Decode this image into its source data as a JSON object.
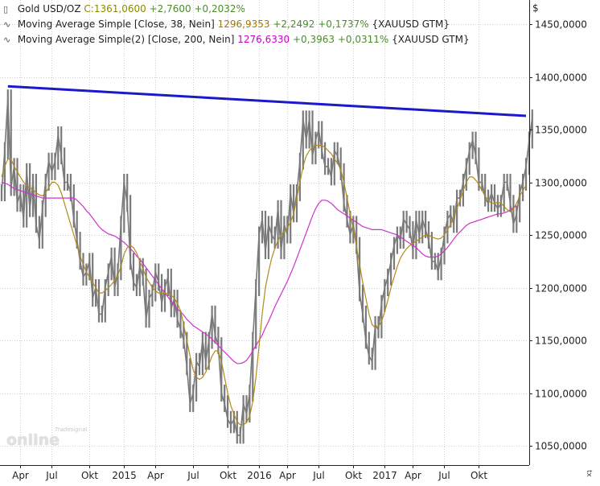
{
  "legend": {
    "main": {
      "name": "Gold USD/OZ",
      "price": "C:1361,0600",
      "change": "+2,7600",
      "pct": "+0,2032%"
    },
    "ma38": {
      "name": "Moving Average Simple [Close, 38, Nein]",
      "price": "1296,9353",
      "change": "+2,2492",
      "pct": "+0,1737%",
      "sym": "{XAUUSD GTM}"
    },
    "ma200": {
      "name": "Moving Average Simple(2) [Close, 200, Nein]",
      "price": "1276,6330",
      "change": "+0,3963",
      "pct": "+0,0311%",
      "sym": "{XAUUSD GTM}"
    }
  },
  "axis_currency": "$",
  "axis_corner": "tx",
  "watermark": {
    "logo": "online",
    "sub": "Tradesignal"
  },
  "colors": {
    "price": "#7a7a7a",
    "ma38": "#b08a1a",
    "ma200": "#cc33cc",
    "trend": "#1a1acc"
  },
  "chart_data": {
    "type": "line",
    "ylim": [
      1040,
      1480
    ],
    "y_ticks": [
      "1450,0000",
      "1400,0000",
      "1350,0000",
      "1300,0000",
      "1250,0000",
      "1200,0000",
      "1150,0000",
      "1100,0000",
      "1050,0000"
    ],
    "y_tick_values": [
      1450,
      1400,
      1350,
      1300,
      1250,
      1200,
      1150,
      1100,
      1050
    ],
    "x_ticks": [
      "Apr",
      "Jul",
      "Okt",
      "2015",
      "Apr",
      "Jul",
      "Okt",
      "2016",
      "Apr",
      "Jul",
      "Okt",
      "2017",
      "Apr",
      "Jul",
      "Okt"
    ],
    "x_tick_index": [
      6,
      16,
      28,
      39,
      49,
      61,
      72,
      82,
      91,
      101,
      112,
      122,
      131,
      141,
      152
    ],
    "x_count": 168,
    "series": [
      {
        "key": "price",
        "values": [
          1290,
          1330,
          1380,
          1295,
          1315,
          1280,
          1290,
          1265,
          1310,
          1275,
          1300,
          1260,
          1245,
          1275,
          1300,
          1320,
          1310,
          1320,
          1345,
          1325,
          1300,
          1300,
          1290,
          1265,
          1245,
          1225,
          1210,
          1215,
          1225,
          1190,
          1200,
          1175,
          1175,
          1200,
          1215,
          1230,
          1200,
          1215,
          1260,
          1300,
          1280,
          1225,
          1205,
          1200,
          1220,
          1210,
          1170,
          1190,
          1195,
          1215,
          1205,
          1185,
          1200,
          1210,
          1180,
          1190,
          1170,
          1160,
          1150,
          1125,
          1090,
          1100,
          1130,
          1125,
          1150,
          1130,
          1150,
          1175,
          1155,
          1145,
          1100,
          1090,
          1075,
          1070,
          1075,
          1060,
          1060,
          1090,
          1080,
          1100,
          1150,
          1200,
          1250,
          1265,
          1235,
          1260,
          1250,
          1245,
          1275,
          1235,
          1260,
          1250,
          1290,
          1270,
          1290,
          1320,
          1360,
          1340,
          1360,
          1325,
          1340,
          1350,
          1330,
          1315,
          1315,
          1305,
          1330,
          1325,
          1310,
          1280,
          1265,
          1250,
          1260,
          1240,
          1195,
          1175,
          1150,
          1135,
          1130,
          1165,
          1160,
          1185,
          1200,
          1210,
          1225,
          1240,
          1250,
          1245,
          1265,
          1260,
          1255,
          1235,
          1265,
          1250,
          1265,
          1255,
          1245,
          1225,
          1225,
          1215,
          1230,
          1250,
          1265,
          1270,
          1260,
          1285,
          1285,
          1300,
          1315,
          1330,
          1340,
          1325,
          1300,
          1300,
          1285,
          1280,
          1290,
          1280,
          1275,
          1280,
          1300,
          1300,
          1280,
          1260,
          1270,
          1290,
          1300,
          1315,
          1340,
          1361
        ]
      },
      {
        "key": "ma38",
        "values": [
          1305,
          1315,
          1322,
          1322,
          1315,
          1310,
          1305,
          1300,
          1297,
          1295,
          1293,
          1290,
          1288,
          1287,
          1290,
          1295,
          1300,
          1300,
          1297,
          1290,
          1280,
          1270,
          1260,
          1250,
          1240,
          1230,
          1222,
          1215,
          1210,
          1205,
          1200,
          1195,
          1195,
          1197,
          1200,
          1203,
          1207,
          1212,
          1220,
          1232,
          1238,
          1240,
          1238,
          1233,
          1225,
          1218,
          1210,
          1205,
          1200,
          1197,
          1195,
          1195,
          1195,
          1194,
          1193,
          1190,
          1185,
          1178,
          1165,
          1150,
          1135,
          1122,
          1115,
          1113,
          1115,
          1120,
          1127,
          1135,
          1140,
          1140,
          1130,
          1115,
          1100,
          1088,
          1080,
          1073,
          1070,
          1070,
          1072,
          1078,
          1092,
          1115,
          1145,
          1175,
          1200,
          1215,
          1228,
          1237,
          1245,
          1250,
          1253,
          1257,
          1262,
          1270,
          1285,
          1300,
          1315,
          1325,
          1330,
          1333,
          1335,
          1335,
          1335,
          1333,
          1330,
          1327,
          1322,
          1318,
          1312,
          1300,
          1285,
          1270,
          1255,
          1240,
          1222,
          1205,
          1190,
          1175,
          1165,
          1162,
          1163,
          1168,
          1177,
          1188,
          1200,
          1210,
          1220,
          1228,
          1233,
          1237,
          1240,
          1242,
          1244,
          1246,
          1248,
          1250,
          1250,
          1248,
          1247,
          1246,
          1247,
          1250,
          1255,
          1260,
          1267,
          1275,
          1283,
          1292,
          1300,
          1305,
          1305,
          1302,
          1298,
          1292,
          1287,
          1283,
          1280,
          1280,
          1281,
          1280,
          1277,
          1274,
          1272,
          1275,
          1280,
          1287,
          1292,
          1297
        ]
      },
      {
        "key": "ma200",
        "values": [
          1300,
          1299,
          1298,
          1296,
          1294,
          1293,
          1292,
          1291,
          1290,
          1289,
          1288,
          1287,
          1286,
          1285,
          1285,
          1285,
          1285,
          1285,
          1285,
          1285,
          1285,
          1285,
          1285,
          1285,
          1283,
          1280,
          1277,
          1273,
          1270,
          1266,
          1262,
          1258,
          1255,
          1253,
          1251,
          1250,
          1249,
          1247,
          1245,
          1243,
          1240,
          1237,
          1234,
          1230,
          1227,
          1223,
          1219,
          1215,
          1211,
          1207,
          1203,
          1199,
          1195,
          1191,
          1187,
          1183,
          1180,
          1177,
          1174,
          1170,
          1167,
          1164,
          1162,
          1160,
          1158,
          1156,
          1154,
          1151,
          1148,
          1145,
          1142,
          1139,
          1136,
          1133,
          1130,
          1128,
          1128,
          1129,
          1131,
          1135,
          1140,
          1145,
          1150,
          1155,
          1162,
          1168,
          1175,
          1182,
          1188,
          1194,
          1200,
          1206,
          1213,
          1220,
          1228,
          1236,
          1244,
          1252,
          1260,
          1268,
          1275,
          1280,
          1283,
          1283,
          1282,
          1280,
          1277,
          1274,
          1272,
          1270,
          1268,
          1266,
          1264,
          1262,
          1260,
          1258,
          1257,
          1256,
          1255,
          1255,
          1255,
          1255,
          1254,
          1253,
          1252,
          1251,
          1250,
          1248,
          1246,
          1244,
          1242,
          1240,
          1238,
          1235,
          1232,
          1230,
          1229,
          1229,
          1229,
          1230,
          1232,
          1235,
          1238,
          1242,
          1246,
          1250,
          1253,
          1256,
          1259,
          1261,
          1262,
          1263,
          1264,
          1265,
          1266,
          1267,
          1268,
          1269,
          1270,
          1270,
          1271,
          1272,
          1274,
          1276,
          1277
        ]
      },
      {
        "key": "trend",
        "points": [
          [
            2,
            1391
          ],
          [
            167,
            1363
          ]
        ]
      }
    ]
  }
}
